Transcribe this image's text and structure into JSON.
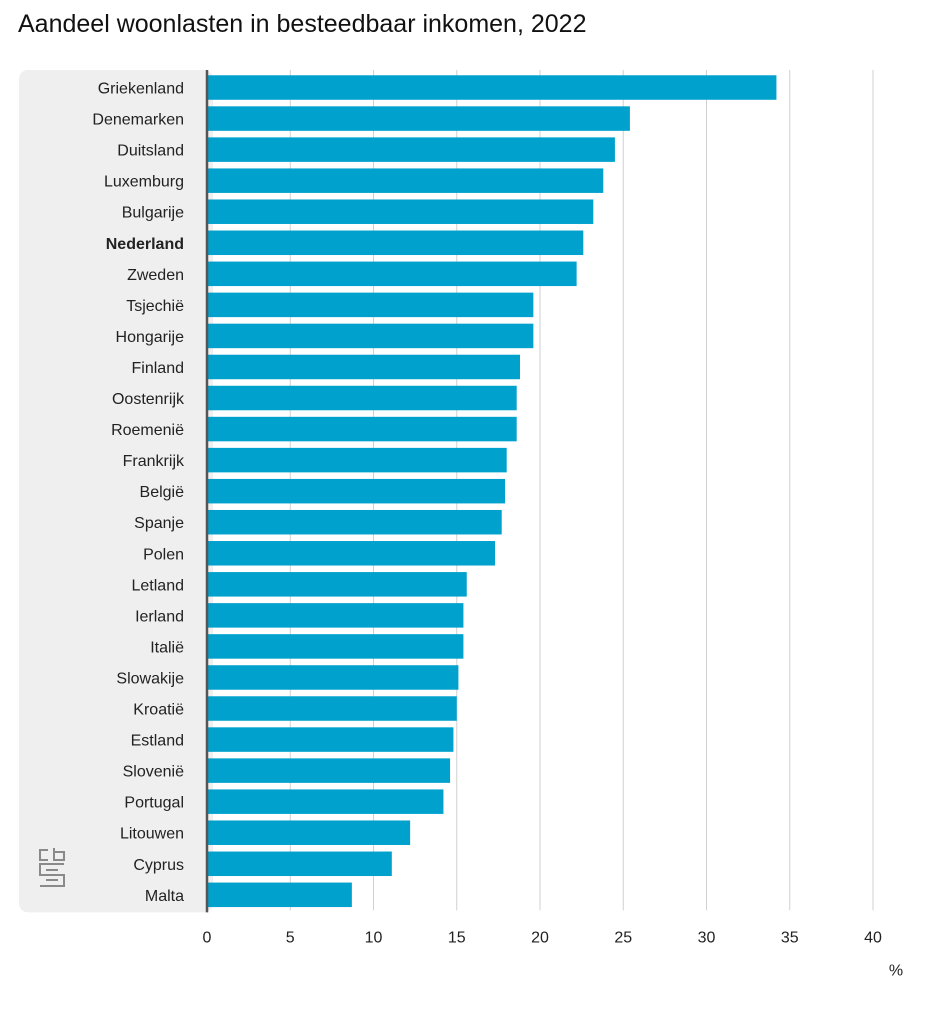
{
  "chart_data": {
    "type": "bar",
    "orientation": "horizontal",
    "title": "Aandeel woonlasten in besteedbaar inkomen, 2022",
    "unit": "%",
    "categories": [
      "Griekenland",
      "Denemarken",
      "Duitsland",
      "Luxemburg",
      "Bulgarije",
      "Nederland",
      "Zweden",
      "Tsjechië",
      "Hongarije",
      "Finland",
      "Oostenrijk",
      "Roemenië",
      "Frankrijk",
      "België",
      "Spanje",
      "Polen",
      "Letland",
      "Ierland",
      "Italië",
      "Slowakije",
      "Kroatië",
      "Estland",
      "Slovenië",
      "Portugal",
      "Litouwen",
      "Cyprus",
      "Malta"
    ],
    "values": [
      34.2,
      25.4,
      24.5,
      23.8,
      23.2,
      22.6,
      22.2,
      19.6,
      19.6,
      18.8,
      18.6,
      18.6,
      18.0,
      17.9,
      17.7,
      17.3,
      15.6,
      15.4,
      15.4,
      15.1,
      15.0,
      14.8,
      14.6,
      14.2,
      12.2,
      11.1,
      8.7
    ],
    "highlight": "Nederland",
    "xlim": [
      0,
      40
    ],
    "xticks": [
      0,
      5,
      10,
      15,
      20,
      25,
      30,
      35,
      40
    ],
    "grid": true,
    "bar_color": "#00a1cd",
    "label_panel_color": "#efefef",
    "gridline_color": "#d0d0d0",
    "axis_color": "#555555"
  },
  "logo": {
    "name": "cbs-logo-icon",
    "text": "cbs"
  }
}
